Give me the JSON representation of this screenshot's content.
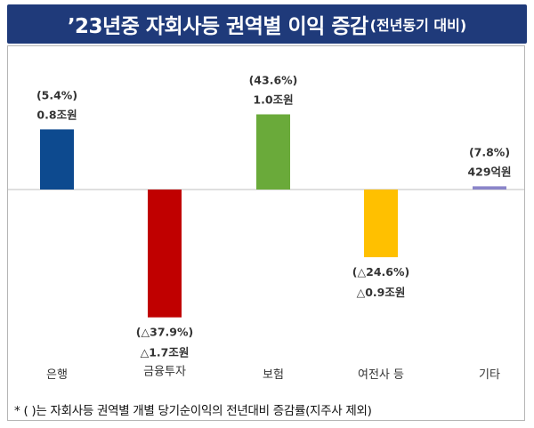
{
  "header": {
    "title_main": "’23년중 자회사등 권역별 이익 증감",
    "title_sub": "(전년동기 대비)"
  },
  "footnote": "* ( )는 자회사등 권역별 개별 당기순이익의 전년대비 증감률(지주사 제외)",
  "chart_data": {
    "type": "bar",
    "title": "’23년중 자회사등 권역별 이익 증감(전년동기 대비)",
    "unit": "조원",
    "categories": [
      "은행",
      "금융투자",
      "보험",
      "여전사 등",
      "기타"
    ],
    "values": [
      0.8,
      -1.7,
      1.0,
      -0.9,
      0.0429
    ],
    "value_labels": [
      "0.8조원",
      "△1.7조원",
      "1.0조원",
      "△0.9조원",
      "429억원"
    ],
    "pct_labels": [
      "(5.4%)",
      "(△37.9%)",
      "(43.6%)",
      "(△24.6%)",
      "(7.8%)"
    ],
    "colors": [
      "#0d4a8f",
      "#c00000",
      "#6aaa3a",
      "#ffc000",
      "#8a85c9"
    ],
    "ylim": [
      -1.7,
      1.0
    ],
    "xlabel": "",
    "ylabel": "",
    "grid": false,
    "legend": "none"
  }
}
